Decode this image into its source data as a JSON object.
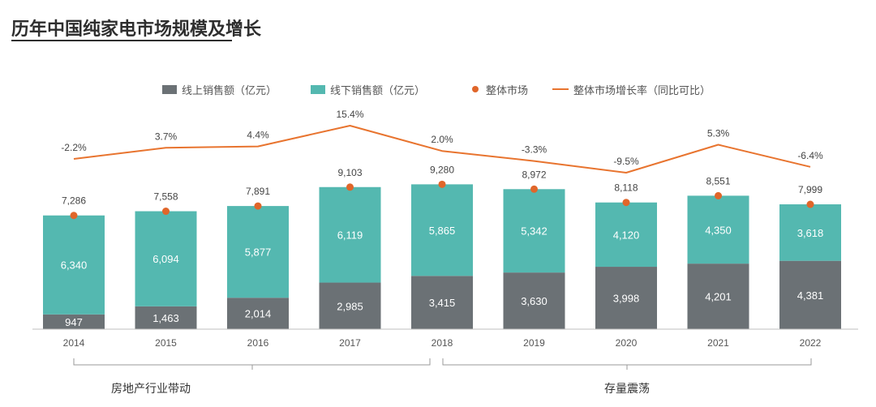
{
  "title": "历年中国纯家电市场规模及增长",
  "colors": {
    "online": "#6b7175",
    "offline": "#54b8b0",
    "market_dot": "#e0662a",
    "growth_line": "#e8742f",
    "axis": "#bfbfbf"
  },
  "chart_data": {
    "type": "bar",
    "stacked": true,
    "title": "历年中国纯家电市场规模及增长",
    "categories": [
      "2014",
      "2015",
      "2016",
      "2017",
      "2018",
      "2019",
      "2020",
      "2021",
      "2022"
    ],
    "series": [
      {
        "name": "线上销售额（亿元）",
        "values": [
          947,
          1463,
          2014,
          2985,
          3415,
          3630,
          3998,
          4201,
          4381
        ]
      },
      {
        "name": "线下销售额（亿元）",
        "values": [
          6340,
          6094,
          5877,
          6119,
          5865,
          5342,
          4120,
          4350,
          3618
        ]
      }
    ],
    "totals_name": "整体市场",
    "totals": [
      7286,
      7558,
      7891,
      9103,
      9280,
      8972,
      8118,
      8551,
      7999
    ],
    "totals_labels": [
      "7,286",
      "7,558",
      "7,891",
      "9,103",
      "9,280",
      "8,972",
      "8,118",
      "8,551",
      "7,999"
    ],
    "online_labels": [
      "947",
      "1,463",
      "2,014",
      "2,985",
      "3,415",
      "3,630",
      "3,998",
      "4,201",
      "4,381"
    ],
    "offline_labels": [
      "6,340",
      "6,094",
      "5,877",
      "6,119",
      "5,865",
      "5,342",
      "4,120",
      "4,350",
      "3,618"
    ],
    "growth_name": "整体市场增长率（同比可比）",
    "growth": [
      -2.2,
      3.7,
      4.4,
      15.4,
      2.0,
      -3.3,
      -9.5,
      5.3,
      -6.4
    ],
    "growth_labels": [
      "-2.2%",
      "3.7%",
      "4.4%",
      "15.4%",
      "2.0%",
      "-3.3%",
      "-9.5%",
      "5.3%",
      "-6.4%"
    ],
    "ylim": [
      0,
      10000
    ],
    "growth_ylim": [
      -10,
      16
    ],
    "legend": [
      "线上销售额（亿元）",
      "线下销售额（亿元）",
      "整体市场",
      "整体市场增长率（同比可比）"
    ],
    "legend_position": "top-center",
    "annotations": [
      {
        "text": "房地产行业带动",
        "from": "2014",
        "to": "2018"
      },
      {
        "text": "存量震荡",
        "from": "2018",
        "to": "2022"
      }
    ]
  }
}
